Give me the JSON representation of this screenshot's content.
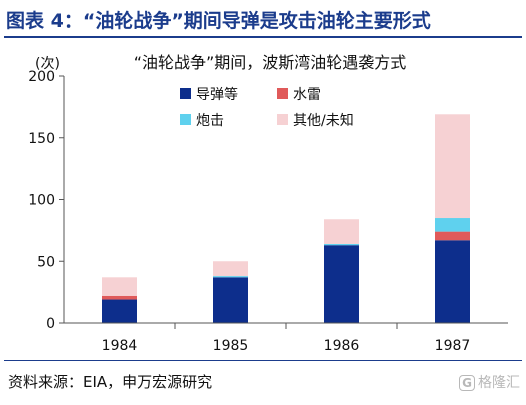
{
  "header": {
    "title": "图表 4：“油轮战争”期间导弹是攻击油轮主要形式"
  },
  "footer": {
    "source": "资料来源：EIA，申万宏源研究",
    "watermark_badge": "G",
    "watermark_text": "格隆汇"
  },
  "chart_data": {
    "type": "bar",
    "stacked": true,
    "title": "“油轮战争”期间，波斯湾油轮遇袭方式",
    "ylabel": "(次)",
    "ylim": [
      0,
      200
    ],
    "yticks": [
      "0",
      "50",
      "100",
      "150",
      "200"
    ],
    "categories": [
      "1984",
      "1985",
      "1986",
      "1987"
    ],
    "series": [
      {
        "name": "导弹等",
        "color": "#0d2e8c",
        "values": [
          19,
          37,
          63,
          67
        ]
      },
      {
        "name": "水雷",
        "color": "#e05a5a",
        "values": [
          3,
          0,
          0,
          7
        ]
      },
      {
        "name": "炮击",
        "color": "#5fd1ee",
        "values": [
          0,
          1,
          1,
          11
        ]
      },
      {
        "name": "其他/未知",
        "color": "#f6d1d3",
        "values": [
          15,
          12,
          20,
          84
        ]
      }
    ],
    "legend": "top-right",
    "grid": false
  }
}
